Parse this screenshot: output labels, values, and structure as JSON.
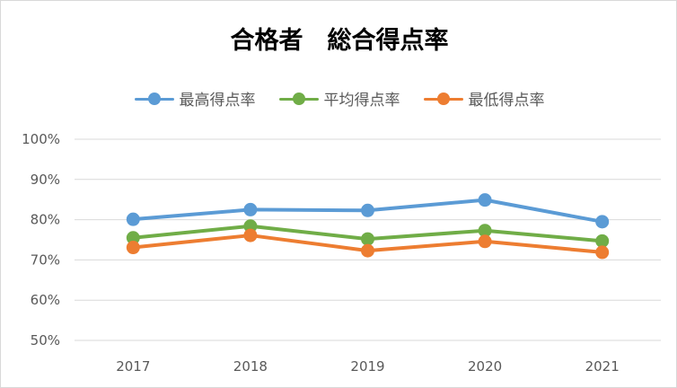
{
  "chart_data": {
    "type": "line",
    "title": "合格者　総合得点率",
    "categories": [
      "2017",
      "2018",
      "2019",
      "2020",
      "2021"
    ],
    "ylim": [
      50,
      100
    ],
    "y_ticks": [
      "100%",
      "90%",
      "80%",
      "70%",
      "60%",
      "50%"
    ],
    "y_tick_values": [
      100,
      90,
      80,
      70,
      60,
      50
    ],
    "grid": true,
    "legend_position": "top",
    "series": [
      {
        "name": "最高得点率",
        "color": "#5b9bd5",
        "values": [
          80.1,
          82.5,
          82.3,
          84.9,
          79.5
        ]
      },
      {
        "name": "平均得点率",
        "color": "#70ad47",
        "values": [
          75.5,
          78.4,
          75.2,
          77.3,
          74.7
        ]
      },
      {
        "name": "最低得点率",
        "color": "#ed7d31",
        "values": [
          73.1,
          76.1,
          72.3,
          74.6,
          71.9
        ]
      }
    ]
  }
}
